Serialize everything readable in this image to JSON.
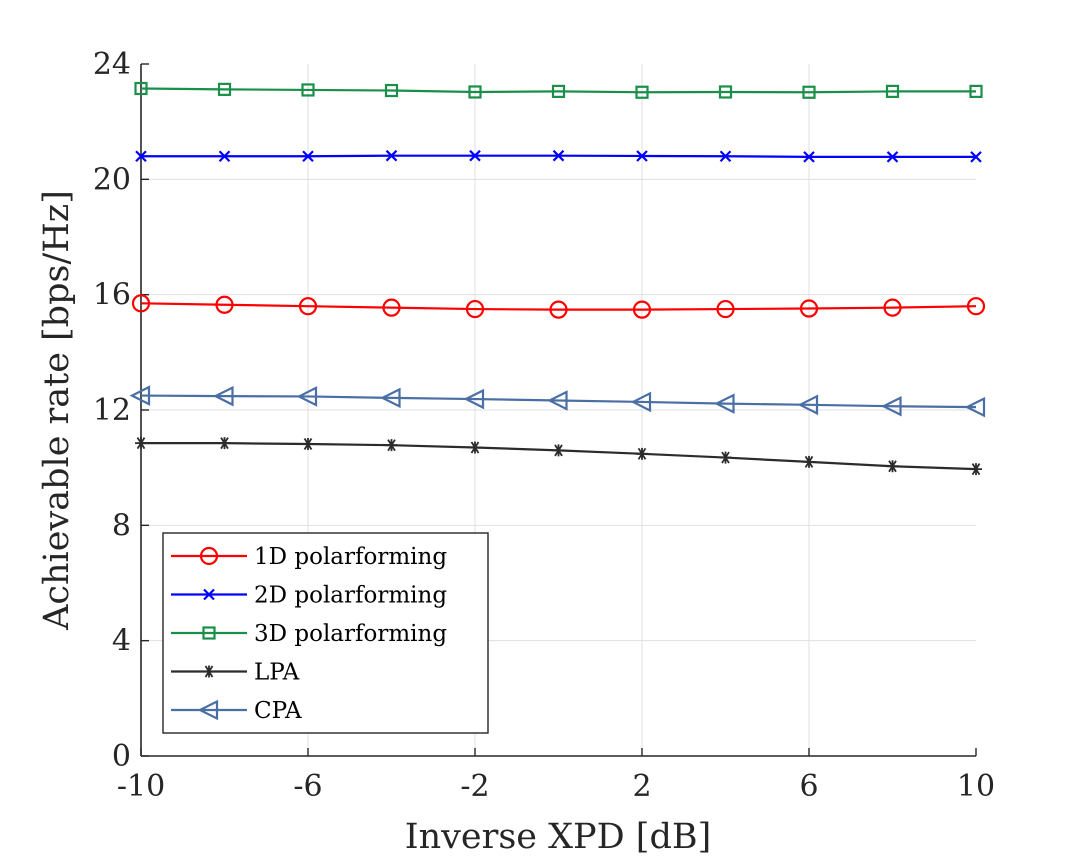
{
  "chart_data": {
    "type": "line",
    "title": "",
    "xlabel": "Inverse XPD [dB]",
    "ylabel": "Achievable rate [bps/Hz]",
    "xlim": [
      -10,
      10
    ],
    "ylim": [
      0,
      24
    ],
    "grid": true,
    "legend_position": "bottom-left",
    "x": [
      -10,
      -8,
      -6,
      -4,
      -2,
      0,
      2,
      4,
      6,
      8,
      10
    ],
    "x_ticks": [
      -10,
      -6,
      -2,
      2,
      6,
      10
    ],
    "x_tick_labels": [
      "-10",
      "-6",
      "-2",
      "2",
      "6",
      "10"
    ],
    "y_ticks": [
      0,
      4,
      8,
      12,
      16,
      20,
      24
    ],
    "y_tick_labels": [
      "0",
      "4",
      "8",
      "12",
      "16",
      "20",
      "24"
    ],
    "series": [
      {
        "name": "1D polarforming",
        "color": "#ff0000",
        "marker": "circle",
        "values": [
          15.7,
          15.65,
          15.6,
          15.55,
          15.5,
          15.48,
          15.48,
          15.5,
          15.52,
          15.55,
          15.6
        ]
      },
      {
        "name": "2D polarforming",
        "color": "#0000ff",
        "marker": "x",
        "values": [
          20.8,
          20.8,
          20.8,
          20.82,
          20.82,
          20.82,
          20.81,
          20.8,
          20.78,
          20.78,
          20.78
        ]
      },
      {
        "name": "3D polarforming",
        "color": "#1a8f4a",
        "marker": "square",
        "values": [
          23.15,
          23.12,
          23.1,
          23.08,
          23.03,
          23.05,
          23.02,
          23.03,
          23.02,
          23.05,
          23.05
        ]
      },
      {
        "name": "LPA",
        "color": "#2b2b2b",
        "marker": "asterisk",
        "values": [
          10.85,
          10.85,
          10.82,
          10.78,
          10.7,
          10.6,
          10.48,
          10.35,
          10.2,
          10.05,
          9.95
        ]
      },
      {
        "name": "CPA",
        "color": "#4a6fa5",
        "marker": "triangle-left",
        "values": [
          12.5,
          12.48,
          12.47,
          12.42,
          12.38,
          12.33,
          12.28,
          12.22,
          12.18,
          12.13,
          12.1
        ]
      }
    ]
  }
}
